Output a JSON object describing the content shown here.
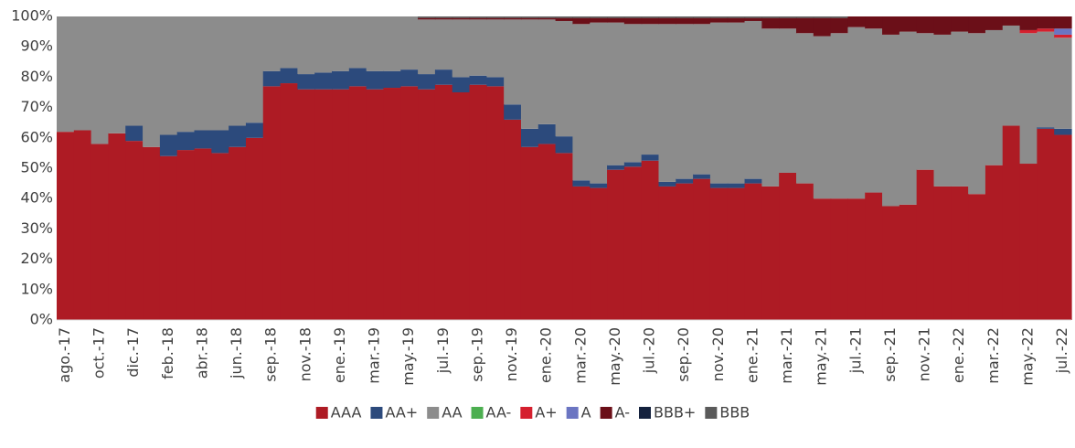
{
  "chart_data": {
    "type": "stacked-bar",
    "categories": [
      "ago.-17",
      null,
      "oct.-17",
      null,
      "dic.-17",
      null,
      "feb.-18",
      null,
      "abr.-18",
      null,
      "jun.-18",
      null,
      "sep.-18",
      null,
      "nov.-18",
      null,
      "ene.-19",
      null,
      "mar.-19",
      null,
      "may.-19",
      null,
      "jul.-19",
      null,
      "sep.-19",
      null,
      "nov.-19",
      null,
      "ene.-20",
      null,
      "mar.-20",
      null,
      "may.-20",
      null,
      "jul.-20",
      null,
      "sep.-20",
      null,
      "nov.-20",
      null,
      "ene.-21",
      null,
      "mar.-21",
      null,
      "may.-21",
      null,
      "jul.-21",
      null,
      "sep.-21",
      null,
      "nov.-21",
      null,
      "ene.-22",
      null,
      "mar.-22",
      null,
      "may.-22",
      null,
      "jul.-22"
    ],
    "series": [
      {
        "name": "AAA",
        "color": "#ae1b24",
        "values": [
          62,
          62.5,
          58,
          61.5,
          59,
          57,
          54,
          56,
          56.5,
          55,
          57,
          60,
          77,
          78,
          76,
          76,
          76,
          77,
          76,
          76.5,
          77,
          76,
          77.5,
          75,
          77.5,
          77,
          66,
          57,
          58,
          55,
          44,
          43.5,
          49.5,
          50.5,
          52.5,
          44,
          45,
          46.5,
          43.5,
          43.5,
          45,
          44,
          48.5,
          45,
          40,
          40,
          40,
          42,
          37.5,
          38,
          49.5,
          44,
          44,
          41.5,
          51,
          64,
          51.5,
          63,
          61
        ]
      },
      {
        "name": "AA+",
        "color": "#2c4a7c",
        "values": [
          0,
          0,
          0,
          0,
          5,
          0,
          7,
          6,
          6,
          7.5,
          7,
          5,
          5,
          5,
          5,
          5.5,
          6,
          6,
          6,
          5.5,
          5.5,
          5,
          5,
          5,
          3,
          3,
          5,
          6,
          6.5,
          5.5,
          2,
          1.5,
          1.5,
          1.5,
          2,
          1.5,
          1.5,
          1.5,
          1.5,
          1.5,
          1.5,
          0,
          0,
          0,
          0,
          0,
          0,
          0,
          0,
          0,
          0,
          0,
          0,
          0,
          0,
          0,
          0,
          0.5,
          2
        ]
      },
      {
        "name": "AA",
        "color": "#8c8c8c",
        "values": [
          38,
          37.5,
          42,
          38.5,
          36,
          43,
          39,
          38,
          37.5,
          37.5,
          36,
          35,
          18,
          17,
          19,
          18.5,
          18,
          17,
          18,
          18,
          17.5,
          18,
          16.5,
          19,
          18.5,
          19,
          28,
          36,
          34.5,
          38,
          51.5,
          53,
          47,
          45.5,
          43,
          52,
          51,
          49.5,
          53,
          53,
          52,
          52,
          47.5,
          49.5,
          53.5,
          54.5,
          56.5,
          54,
          56.5,
          57,
          45,
          50,
          51,
          53,
          44.5,
          33,
          43,
          31.5,
          30
        ]
      },
      {
        "name": "AA-",
        "color": "#4caf50",
        "values": [
          0,
          0,
          0,
          0,
          0,
          0,
          0,
          0,
          0,
          0,
          0,
          0,
          0,
          0,
          0,
          0,
          0,
          0,
          0,
          0,
          0,
          0,
          0,
          0,
          0,
          0,
          0,
          0,
          0,
          0,
          0,
          0,
          0,
          0,
          0,
          0,
          0,
          0,
          0,
          0,
          0,
          0,
          0,
          0,
          0,
          0,
          0,
          0,
          0,
          0,
          0,
          0,
          0,
          0,
          0,
          0,
          0,
          0,
          0
        ]
      },
      {
        "name": "A+",
        "color": "#d5202e",
        "values": [
          0,
          0,
          0,
          0,
          0,
          0,
          0,
          0,
          0,
          0,
          0,
          0,
          0,
          0,
          0,
          0,
          0,
          0,
          0,
          0,
          0,
          0,
          0,
          0,
          0,
          0,
          0,
          0,
          0,
          0,
          0,
          0,
          0,
          0,
          0,
          0,
          0,
          0,
          0,
          0,
          0,
          0,
          0,
          0,
          0,
          0,
          0,
          0,
          0,
          0,
          0,
          0,
          0,
          0,
          0,
          0,
          1,
          1,
          1
        ]
      },
      {
        "name": "A",
        "color": "#6b75c2",
        "values": [
          0,
          0,
          0,
          0,
          0,
          0,
          0,
          0,
          0,
          0,
          0,
          0,
          0,
          0,
          0,
          0,
          0,
          0,
          0,
          0,
          0,
          0,
          0,
          0,
          0,
          0,
          0,
          0,
          0,
          0,
          0,
          0,
          0,
          0,
          0,
          0,
          0,
          0,
          0,
          0,
          0,
          0,
          0,
          0,
          0,
          0,
          0,
          0,
          0,
          0,
          0,
          0,
          0,
          0,
          0,
          0,
          0,
          0,
          2
        ]
      },
      {
        "name": "A-",
        "color": "#6b0f18",
        "values": [
          0,
          0,
          0,
          0,
          0,
          0,
          0,
          0,
          0,
          0,
          0,
          0,
          0,
          0,
          0,
          0,
          0,
          0,
          0,
          0,
          0,
          0.5,
          0.5,
          0.5,
          0.5,
          0.5,
          0.5,
          0.5,
          0.5,
          1,
          2,
          1.5,
          1.5,
          2,
          2,
          2,
          2,
          2,
          1.5,
          1.5,
          1,
          3.5,
          3.5,
          5,
          6,
          5,
          3.5,
          4,
          6,
          5,
          5.5,
          6,
          5,
          5.5,
          4.5,
          3,
          4.5,
          4,
          4
        ]
      },
      {
        "name": "BBB+",
        "color": "#14213d",
        "values": [
          0,
          0,
          0,
          0,
          0,
          0,
          0,
          0,
          0,
          0,
          0,
          0,
          0,
          0,
          0,
          0,
          0,
          0,
          0,
          0,
          0,
          0,
          0,
          0,
          0,
          0,
          0,
          0,
          0,
          0,
          0,
          0,
          0,
          0,
          0,
          0,
          0,
          0,
          0,
          0,
          0,
          0,
          0,
          0,
          0,
          0,
          0,
          0,
          0,
          0,
          0,
          0,
          0,
          0,
          0,
          0,
          0,
          0,
          0
        ]
      },
      {
        "name": "BBB",
        "color": "#5a5a5a",
        "values": [
          0,
          0,
          0,
          0,
          0,
          0,
          0,
          0,
          0,
          0,
          0,
          0,
          0,
          0,
          0,
          0,
          0,
          0,
          0,
          0,
          0,
          0.5,
          0.5,
          0.5,
          0.5,
          0.5,
          0.5,
          0.5,
          0.5,
          0.5,
          0.5,
          0.5,
          0.5,
          0.5,
          0.5,
          0.5,
          0.5,
          0.5,
          0.5,
          0.5,
          0.5,
          0.5,
          0.5,
          0.5,
          0.5,
          0.5,
          0,
          0,
          0,
          0,
          0,
          0,
          0,
          0,
          0,
          0,
          0,
          0,
          0
        ]
      }
    ],
    "ylim": [
      0,
      100
    ],
    "yticks": [
      {
        "value": 0,
        "label": "0%"
      },
      {
        "value": 10,
        "label": "10%"
      },
      {
        "value": 20,
        "label": "20%"
      },
      {
        "value": 30,
        "label": "30%"
      },
      {
        "value": 40,
        "label": "40%"
      },
      {
        "value": 50,
        "label": "50%"
      },
      {
        "value": 60,
        "label": "60%"
      },
      {
        "value": 70,
        "label": "70%"
      },
      {
        "value": 80,
        "label": "80%"
      },
      {
        "value": 90,
        "label": "90%"
      },
      {
        "value": 100,
        "label": "100%"
      }
    ],
    "legend": "bottom"
  }
}
